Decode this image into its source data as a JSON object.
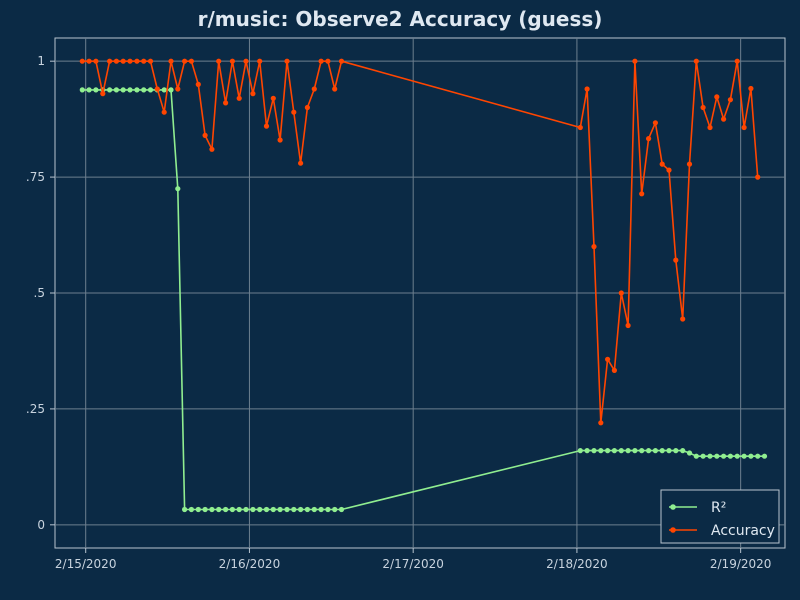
{
  "chart_data": {
    "type": "line",
    "title": "r/music: Observe2 Accuracy (guess)",
    "xlabel": "",
    "ylabel": "",
    "x_tick_labels": [
      "2/15/2020",
      "2/16/2020",
      "2/17/2020",
      "2/18/2020",
      "2/19/2020"
    ],
    "y_tick_labels": [
      "0",
      ".25",
      ".5",
      ".75",
      "1"
    ],
    "y_tick_values": [
      0,
      0.25,
      0.5,
      0.75,
      1
    ],
    "xlim": [
      "2020-02-14 19:30",
      "2020-02-19 06:30"
    ],
    "ylim": [
      -0.05,
      1.05
    ],
    "grid": true,
    "legend_position": "bottom-right",
    "series": [
      {
        "name": "R²",
        "color": "#90ee90",
        "points": [
          [
            "2020-02-14 23:30",
            0.938
          ],
          [
            "2020-02-15 00:30",
            0.938
          ],
          [
            "2020-02-15 01:30",
            0.938
          ],
          [
            "2020-02-15 02:30",
            0.938
          ],
          [
            "2020-02-15 03:30",
            0.938
          ],
          [
            "2020-02-15 04:30",
            0.938
          ],
          [
            "2020-02-15 05:30",
            0.938
          ],
          [
            "2020-02-15 06:30",
            0.938
          ],
          [
            "2020-02-15 07:30",
            0.938
          ],
          [
            "2020-02-15 08:30",
            0.938
          ],
          [
            "2020-02-15 09:30",
            0.938
          ],
          [
            "2020-02-15 10:30",
            0.938
          ],
          [
            "2020-02-15 11:30",
            0.938
          ],
          [
            "2020-02-15 12:30",
            0.938
          ],
          [
            "2020-02-15 13:30",
            0.725
          ],
          [
            "2020-02-15 14:30",
            0.033
          ],
          [
            "2020-02-15 15:30",
            0.033
          ],
          [
            "2020-02-15 16:30",
            0.033
          ],
          [
            "2020-02-15 17:30",
            0.033
          ],
          [
            "2020-02-15 18:30",
            0.033
          ],
          [
            "2020-02-15 19:30",
            0.033
          ],
          [
            "2020-02-15 20:30",
            0.033
          ],
          [
            "2020-02-15 21:30",
            0.033
          ],
          [
            "2020-02-15 22:30",
            0.033
          ],
          [
            "2020-02-15 23:30",
            0.033
          ],
          [
            "2020-02-16 00:30",
            0.033
          ],
          [
            "2020-02-16 01:30",
            0.033
          ],
          [
            "2020-02-16 02:30",
            0.033
          ],
          [
            "2020-02-16 03:30",
            0.033
          ],
          [
            "2020-02-16 04:30",
            0.033
          ],
          [
            "2020-02-16 05:30",
            0.033
          ],
          [
            "2020-02-16 06:30",
            0.033
          ],
          [
            "2020-02-16 07:30",
            0.033
          ],
          [
            "2020-02-16 08:30",
            0.033
          ],
          [
            "2020-02-16 09:30",
            0.033
          ],
          [
            "2020-02-16 10:30",
            0.033
          ],
          [
            "2020-02-16 11:30",
            0.033
          ],
          [
            "2020-02-16 12:30",
            0.033
          ],
          [
            "2020-02-16 13:30",
            0.033
          ],
          [
            "2020-02-18 00:30",
            0.16
          ],
          [
            "2020-02-18 01:30",
            0.16
          ],
          [
            "2020-02-18 02:30",
            0.16
          ],
          [
            "2020-02-18 03:30",
            0.16
          ],
          [
            "2020-02-18 04:30",
            0.16
          ],
          [
            "2020-02-18 05:30",
            0.16
          ],
          [
            "2020-02-18 06:30",
            0.16
          ],
          [
            "2020-02-18 07:30",
            0.16
          ],
          [
            "2020-02-18 08:30",
            0.16
          ],
          [
            "2020-02-18 09:30",
            0.16
          ],
          [
            "2020-02-18 10:30",
            0.16
          ],
          [
            "2020-02-18 11:30",
            0.16
          ],
          [
            "2020-02-18 12:30",
            0.16
          ],
          [
            "2020-02-18 13:30",
            0.16
          ],
          [
            "2020-02-18 14:30",
            0.16
          ],
          [
            "2020-02-18 15:30",
            0.16
          ],
          [
            "2020-02-18 16:30",
            0.155
          ],
          [
            "2020-02-18 17:30",
            0.148
          ],
          [
            "2020-02-18 18:30",
            0.148
          ],
          [
            "2020-02-18 19:30",
            0.148
          ],
          [
            "2020-02-18 20:30",
            0.148
          ],
          [
            "2020-02-18 21:30",
            0.148
          ],
          [
            "2020-02-18 22:30",
            0.148
          ],
          [
            "2020-02-18 23:30",
            0.148
          ],
          [
            "2020-02-19 00:30",
            0.148
          ],
          [
            "2020-02-19 01:30",
            0.148
          ],
          [
            "2020-02-19 02:30",
            0.148
          ],
          [
            "2020-02-19 03:30",
            0.148
          ]
        ]
      },
      {
        "name": "Accuracy",
        "color": "#ff4500",
        "points": [
          [
            "2020-02-14 23:30",
            1.0
          ],
          [
            "2020-02-15 00:30",
            1.0
          ],
          [
            "2020-02-15 01:30",
            1.0
          ],
          [
            "2020-02-15 02:30",
            0.93
          ],
          [
            "2020-02-15 03:30",
            1.0
          ],
          [
            "2020-02-15 04:30",
            1.0
          ],
          [
            "2020-02-15 05:30",
            1.0
          ],
          [
            "2020-02-15 06:30",
            1.0
          ],
          [
            "2020-02-15 07:30",
            1.0
          ],
          [
            "2020-02-15 08:30",
            1.0
          ],
          [
            "2020-02-15 09:30",
            1.0
          ],
          [
            "2020-02-15 10:30",
            0.94
          ],
          [
            "2020-02-15 11:30",
            0.89
          ],
          [
            "2020-02-15 12:30",
            1.0
          ],
          [
            "2020-02-15 13:30",
            0.94
          ],
          [
            "2020-02-15 14:30",
            1.0
          ],
          [
            "2020-02-15 15:30",
            1.0
          ],
          [
            "2020-02-15 16:30",
            0.95
          ],
          [
            "2020-02-15 17:30",
            0.84
          ],
          [
            "2020-02-15 18:30",
            0.81
          ],
          [
            "2020-02-15 19:30",
            1.0
          ],
          [
            "2020-02-15 20:30",
            0.91
          ],
          [
            "2020-02-15 21:30",
            1.0
          ],
          [
            "2020-02-15 22:30",
            0.92
          ],
          [
            "2020-02-15 23:30",
            1.0
          ],
          [
            "2020-02-16 00:30",
            0.93
          ],
          [
            "2020-02-16 01:30",
            1.0
          ],
          [
            "2020-02-16 02:30",
            0.86
          ],
          [
            "2020-02-16 03:30",
            0.92
          ],
          [
            "2020-02-16 04:30",
            0.83
          ],
          [
            "2020-02-16 05:30",
            1.0
          ],
          [
            "2020-02-16 06:30",
            0.89
          ],
          [
            "2020-02-16 07:30",
            0.78
          ],
          [
            "2020-02-16 08:30",
            0.9
          ],
          [
            "2020-02-16 09:30",
            0.94
          ],
          [
            "2020-02-16 10:30",
            1.0
          ],
          [
            "2020-02-16 11:30",
            1.0
          ],
          [
            "2020-02-16 12:30",
            0.94
          ],
          [
            "2020-02-16 13:30",
            1.0
          ],
          [
            "2020-02-18 00:30",
            0.857
          ],
          [
            "2020-02-18 01:30",
            0.94
          ],
          [
            "2020-02-18 02:30",
            0.6
          ],
          [
            "2020-02-18 03:30",
            0.22
          ],
          [
            "2020-02-18 04:30",
            0.357
          ],
          [
            "2020-02-18 05:30",
            0.333
          ],
          [
            "2020-02-18 06:30",
            0.5
          ],
          [
            "2020-02-18 07:30",
            0.43
          ],
          [
            "2020-02-18 08:30",
            1.0
          ],
          [
            "2020-02-18 09:30",
            0.714
          ],
          [
            "2020-02-18 10:30",
            0.833
          ],
          [
            "2020-02-18 11:30",
            0.867
          ],
          [
            "2020-02-18 12:30",
            0.778
          ],
          [
            "2020-02-18 13:30",
            0.765
          ],
          [
            "2020-02-18 14:30",
            0.571
          ],
          [
            "2020-02-18 15:30",
            0.444
          ],
          [
            "2020-02-18 16:30",
            0.778
          ],
          [
            "2020-02-18 17:30",
            1.0
          ],
          [
            "2020-02-18 18:30",
            0.9
          ],
          [
            "2020-02-18 19:30",
            0.857
          ],
          [
            "2020-02-18 20:30",
            0.923
          ],
          [
            "2020-02-18 21:30",
            0.875
          ],
          [
            "2020-02-18 22:30",
            0.917
          ],
          [
            "2020-02-18 23:30",
            1.0
          ],
          [
            "2020-02-19 00:30",
            0.857
          ],
          [
            "2020-02-19 01:30",
            0.941
          ],
          [
            "2020-02-19 02:30",
            0.75
          ]
        ]
      }
    ]
  }
}
